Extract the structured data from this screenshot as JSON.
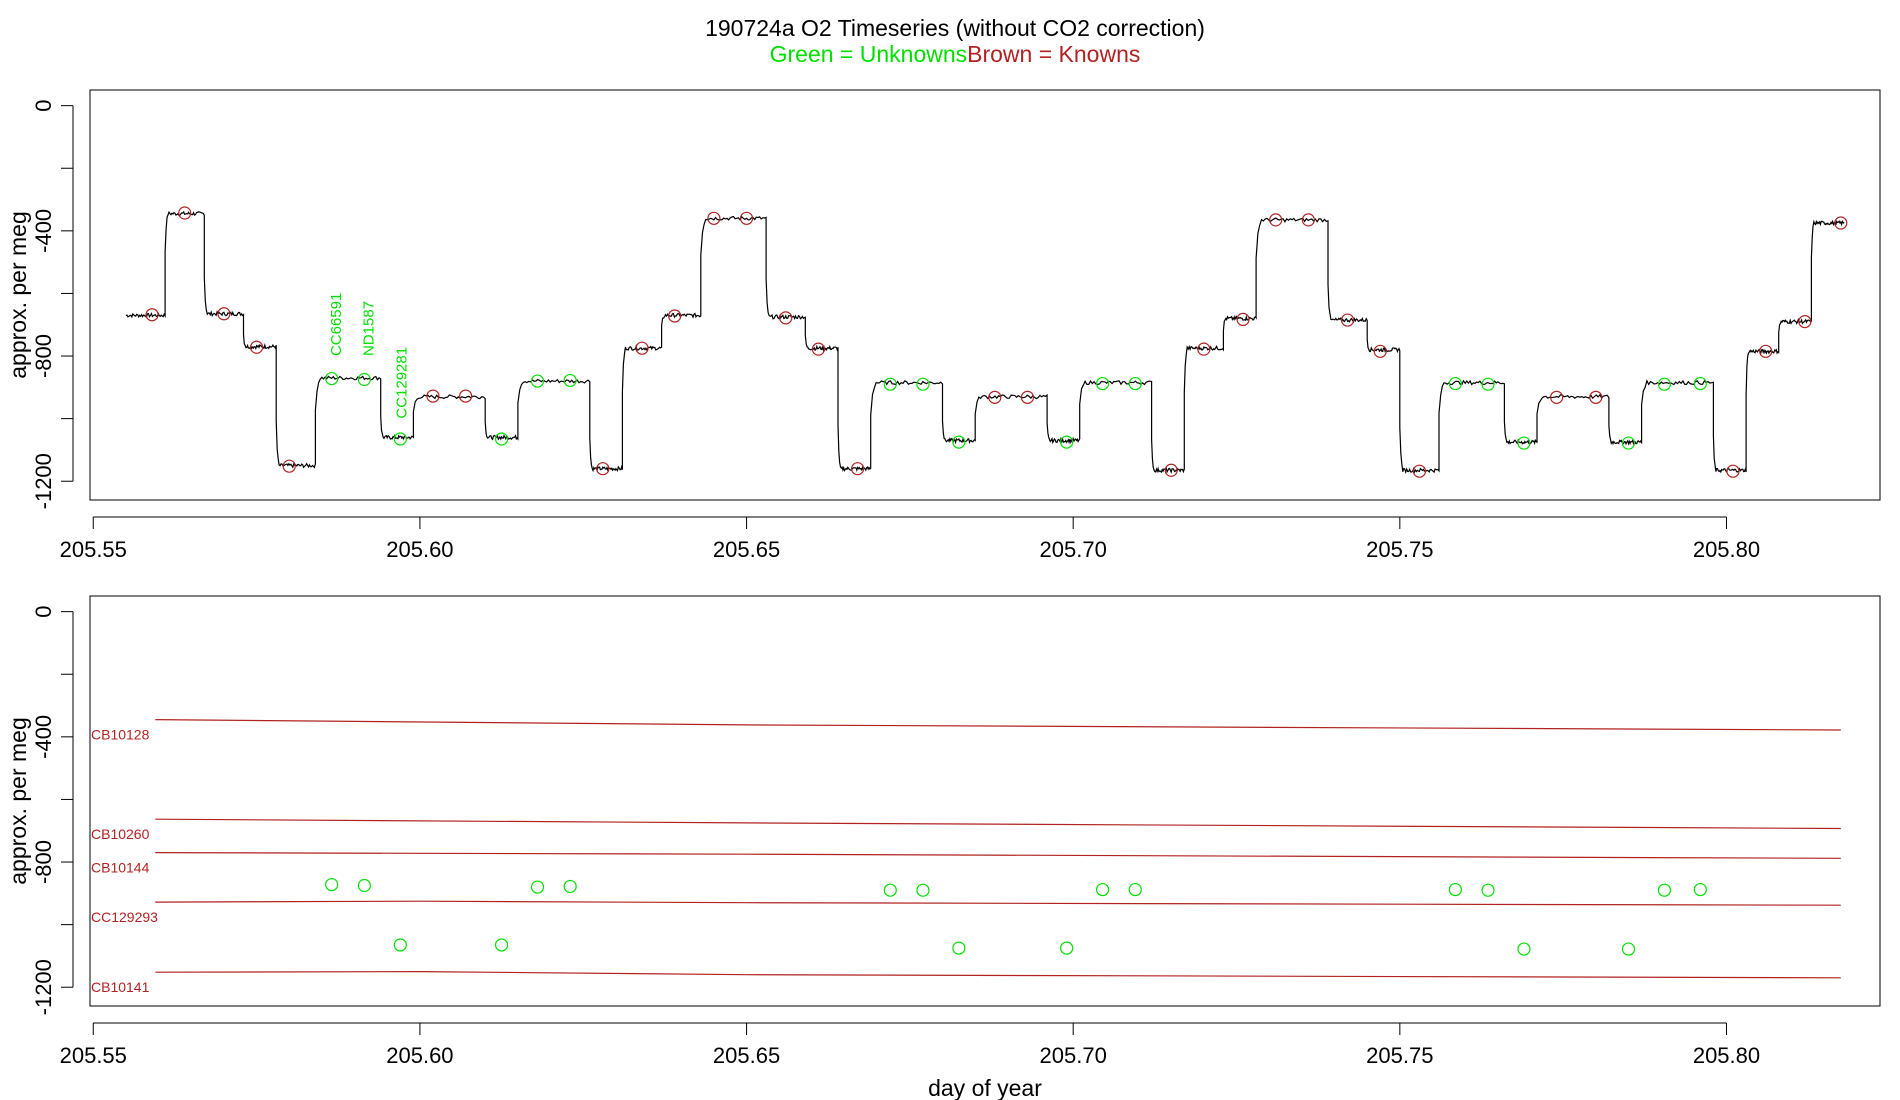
{
  "colors": {
    "unknown": "#00e000",
    "known": "#b22222",
    "trace": "#000000",
    "axis": "#000000"
  },
  "chart_data": [
    {
      "type": "line",
      "title": "190724a   O2 Timeseries (without CO2 correction)",
      "subtitle_unknowns": "Green = Unknowns",
      "subtitle_knowns": "Brown = Knowns",
      "xlabel": "",
      "ylabel": "approx. per meg",
      "xlim": [
        205.5495,
        205.8235
      ],
      "ylim": [
        -1260,
        50
      ],
      "xticks": [
        205.55,
        205.6,
        205.65,
        205.7,
        205.75,
        205.8
      ],
      "xtick_labels": [
        "205.55",
        "205.60",
        "205.65",
        "205.70",
        "205.75",
        "205.80"
      ],
      "yticks": [
        0,
        -200,
        -400,
        -600,
        -800,
        -1000,
        -1200
      ],
      "ytick_labels": [
        "0",
        "-400",
        "-800",
        "-1200"
      ],
      "ytick_label_values": [
        0,
        -400,
        -800,
        -1200
      ],
      "grid": false,
      "trace_steps": [
        [
          205.555,
          -670
        ],
        [
          205.561,
          -345
        ],
        [
          205.567,
          -665
        ],
        [
          205.573,
          -770
        ],
        [
          205.578,
          -1150
        ],
        [
          205.584,
          -870
        ],
        [
          205.594,
          -1060
        ],
        [
          205.599,
          -930
        ],
        [
          205.61,
          -1060
        ],
        [
          205.615,
          -880
        ],
        [
          205.626,
          -1160
        ],
        [
          205.631,
          -775
        ],
        [
          205.637,
          -670
        ],
        [
          205.643,
          -360
        ],
        [
          205.653,
          -675
        ],
        [
          205.659,
          -775
        ],
        [
          205.664,
          -1160
        ],
        [
          205.669,
          -885
        ],
        [
          205.68,
          -1070
        ],
        [
          205.685,
          -930
        ],
        [
          205.696,
          -1070
        ],
        [
          205.701,
          -885
        ],
        [
          205.712,
          -1165
        ],
        [
          205.717,
          -775
        ],
        [
          205.723,
          -680
        ],
        [
          205.728,
          -365
        ],
        [
          205.739,
          -685
        ],
        [
          205.745,
          -780
        ],
        [
          205.75,
          -1165
        ],
        [
          205.756,
          -885
        ],
        [
          205.766,
          -1075
        ],
        [
          205.771,
          -930
        ],
        [
          205.782,
          -1075
        ],
        [
          205.787,
          -885
        ],
        [
          205.798,
          -1165
        ],
        [
          205.803,
          -785
        ],
        [
          205.808,
          -690
        ],
        [
          205.813,
          -375
        ]
      ],
      "trace_end": 205.818,
      "knowns": [
        [
          205.559,
          -668
        ],
        [
          205.564,
          -343
        ],
        [
          205.57,
          -665
        ],
        [
          205.575,
          -772
        ],
        [
          205.58,
          -1152
        ],
        [
          205.602,
          -928
        ],
        [
          205.607,
          -928
        ],
        [
          205.628,
          -1160
        ],
        [
          205.634,
          -775
        ],
        [
          205.639,
          -672
        ],
        [
          205.645,
          -360
        ],
        [
          205.65,
          -360
        ],
        [
          205.656,
          -678
        ],
        [
          205.661,
          -778
        ],
        [
          205.667,
          -1160
        ],
        [
          205.688,
          -932
        ],
        [
          205.693,
          -932
        ],
        [
          205.715,
          -1165
        ],
        [
          205.72,
          -778
        ],
        [
          205.726,
          -683
        ],
        [
          205.731,
          -365
        ],
        [
          205.736,
          -365
        ],
        [
          205.742,
          -685
        ],
        [
          205.747,
          -785
        ],
        [
          205.753,
          -1168
        ],
        [
          205.774,
          -932
        ],
        [
          205.78,
          -932
        ],
        [
          205.801,
          -1168
        ],
        [
          205.806,
          -785
        ],
        [
          205.812,
          -690
        ],
        [
          205.8175,
          -375
        ]
      ],
      "unknowns": [
        [
          205.5865,
          -872
        ],
        [
          205.5915,
          -875
        ],
        [
          205.597,
          -1065
        ],
        [
          205.6125,
          -1065
        ],
        [
          205.618,
          -880
        ],
        [
          205.623,
          -878
        ],
        [
          205.672,
          -890
        ],
        [
          205.677,
          -890
        ],
        [
          205.6825,
          -1075
        ],
        [
          205.699,
          -1075
        ],
        [
          205.7045,
          -888
        ],
        [
          205.7095,
          -888
        ],
        [
          205.7585,
          -888
        ],
        [
          205.7635,
          -890
        ],
        [
          205.769,
          -1078
        ],
        [
          205.785,
          -1078
        ],
        [
          205.7905,
          -890
        ],
        [
          205.796,
          -888
        ]
      ],
      "annotations": [
        {
          "text": "CC66591",
          "x": 205.587,
          "y": -800
        },
        {
          "text": "ND1587",
          "x": 205.592,
          "y": -800
        },
        {
          "text": "CC129281",
          "x": 205.597,
          "y": -1000
        }
      ]
    },
    {
      "type": "scatter",
      "xlabel": "day of year",
      "ylabel": "approx. per meg",
      "xlim": [
        205.5495,
        205.8235
      ],
      "ylim": [
        -1260,
        50
      ],
      "xticks": [
        205.55,
        205.6,
        205.65,
        205.7,
        205.75,
        205.8
      ],
      "xtick_labels": [
        "205.55",
        "205.60",
        "205.65",
        "205.70",
        "205.75",
        "205.80"
      ],
      "yticks": [
        0,
        -200,
        -400,
        -600,
        -800,
        -1000,
        -1200
      ],
      "ytick_labels": [
        "0",
        "-400",
        "-800",
        "-1200"
      ],
      "ytick_label_values": [
        0,
        -400,
        -800,
        -1200
      ],
      "grid": false,
      "reference_lines": [
        {
          "name": "CB10128",
          "x": [
            205.5595,
            205.65,
            205.8175
          ],
          "y": [
            -345,
            -362,
            -378
          ]
        },
        {
          "name": "CB10260",
          "x": [
            205.5595,
            205.65,
            205.8175
          ],
          "y": [
            -663,
            -675,
            -693
          ]
        },
        {
          "name": "CB10144",
          "x": [
            205.5595,
            205.65,
            205.8175
          ],
          "y": [
            -770,
            -775,
            -788
          ]
        },
        {
          "name": "CC129293",
          "x": [
            205.5595,
            205.6,
            205.65,
            205.8175
          ],
          "y": [
            -928,
            -925,
            -930,
            -938
          ]
        },
        {
          "name": "CB10141",
          "x": [
            205.5595,
            205.6,
            205.65,
            205.8175
          ],
          "y": [
            -1152,
            -1150,
            -1160,
            -1170
          ]
        }
      ],
      "unknowns": [
        [
          205.5865,
          -872
        ],
        [
          205.5915,
          -875
        ],
        [
          205.597,
          -1065
        ],
        [
          205.6125,
          -1065
        ],
        [
          205.618,
          -880
        ],
        [
          205.623,
          -878
        ],
        [
          205.672,
          -890
        ],
        [
          205.677,
          -890
        ],
        [
          205.6825,
          -1075
        ],
        [
          205.699,
          -1075
        ],
        [
          205.7045,
          -888
        ],
        [
          205.7095,
          -888
        ],
        [
          205.7585,
          -888
        ],
        [
          205.7635,
          -890
        ],
        [
          205.769,
          -1078
        ],
        [
          205.785,
          -1078
        ],
        [
          205.7905,
          -890
        ],
        [
          205.796,
          -888
        ]
      ]
    }
  ]
}
